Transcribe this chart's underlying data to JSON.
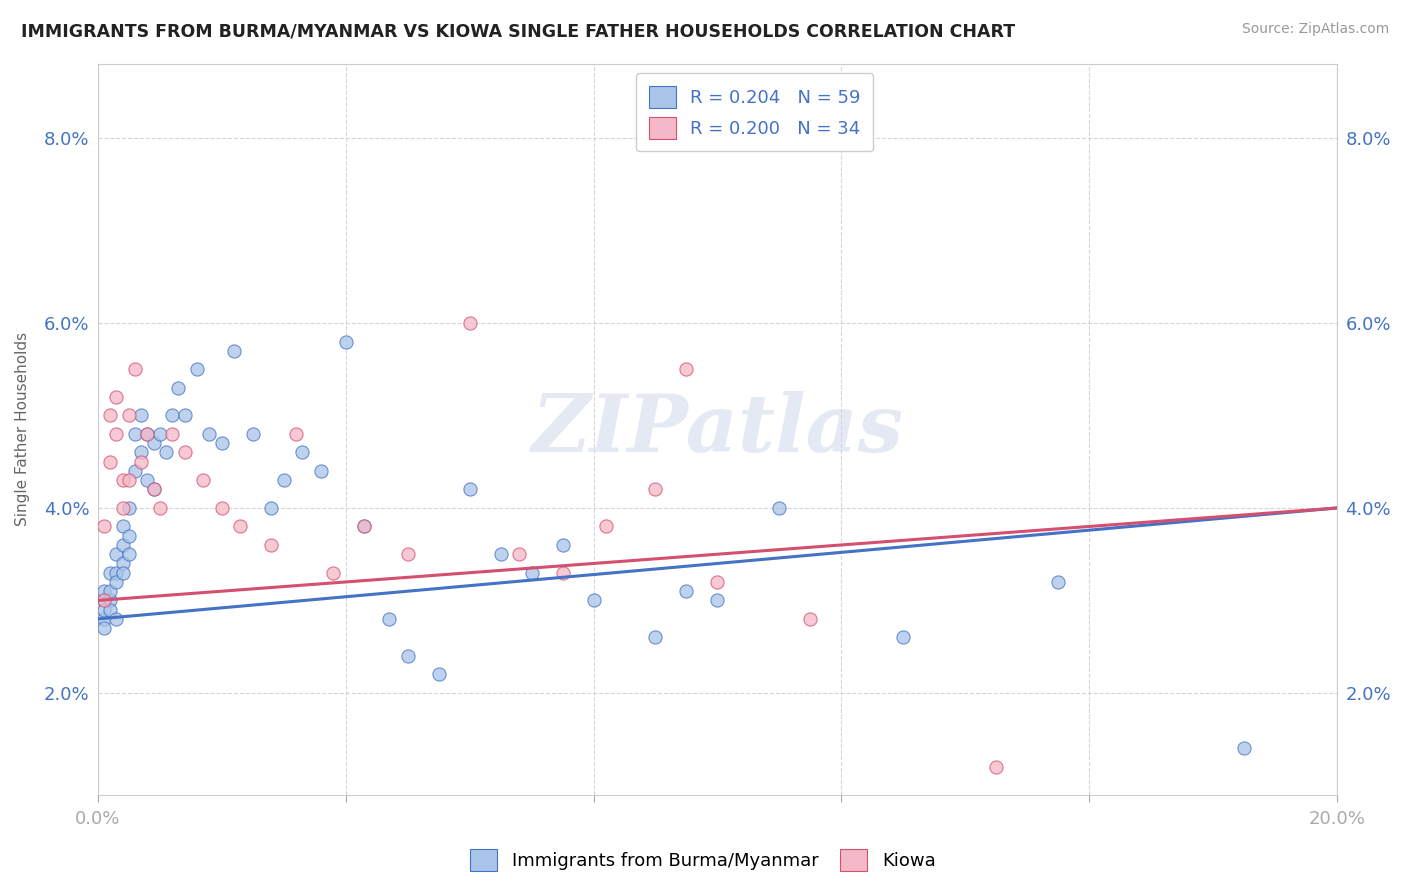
{
  "title": "IMMIGRANTS FROM BURMA/MYANMAR VS KIOWA SINGLE FATHER HOUSEHOLDS CORRELATION CHART",
  "source": "Source: ZipAtlas.com",
  "ylabel": "Single Father Households",
  "xlim": [
    0.0,
    0.2
  ],
  "ylim": [
    0.009,
    0.088
  ],
  "xticks": [
    0.0,
    0.04,
    0.08,
    0.12,
    0.16,
    0.2
  ],
  "yticks": [
    0.02,
    0.04,
    0.06,
    0.08
  ],
  "ytick_labels": [
    "2.0%",
    "4.0%",
    "6.0%",
    "8.0%"
  ],
  "xtick_labels_show": [
    "0.0%",
    "20.0%"
  ],
  "legend_r1": "R = 0.204",
  "legend_n1": "N = 59",
  "legend_r2": "R = 0.200",
  "legend_n2": "N = 34",
  "color_blue": "#a8c4e8",
  "color_pink": "#f4b8c8",
  "color_blue_line": "#4472c4",
  "color_pink_line": "#d45070",
  "watermark_text": "ZIPatlas",
  "bottom_legend1": "Immigrants from Burma/Myanmar",
  "bottom_legend2": "Kiowa",
  "blue_x": [
    0.001,
    0.001,
    0.001,
    0.001,
    0.001,
    0.002,
    0.002,
    0.002,
    0.002,
    0.003,
    0.003,
    0.003,
    0.003,
    0.004,
    0.004,
    0.004,
    0.004,
    0.005,
    0.005,
    0.005,
    0.006,
    0.006,
    0.007,
    0.007,
    0.008,
    0.008,
    0.009,
    0.009,
    0.01,
    0.011,
    0.012,
    0.013,
    0.014,
    0.016,
    0.018,
    0.02,
    0.022,
    0.025,
    0.028,
    0.03,
    0.033,
    0.036,
    0.04,
    0.043,
    0.047,
    0.05,
    0.055,
    0.06,
    0.065,
    0.07,
    0.075,
    0.08,
    0.09,
    0.095,
    0.1,
    0.11,
    0.13,
    0.155,
    0.185
  ],
  "blue_y": [
    0.03,
    0.028,
    0.031,
    0.029,
    0.027,
    0.03,
    0.033,
    0.031,
    0.029,
    0.035,
    0.033,
    0.032,
    0.028,
    0.036,
    0.034,
    0.038,
    0.033,
    0.04,
    0.037,
    0.035,
    0.048,
    0.044,
    0.05,
    0.046,
    0.048,
    0.043,
    0.047,
    0.042,
    0.048,
    0.046,
    0.05,
    0.053,
    0.05,
    0.055,
    0.048,
    0.047,
    0.057,
    0.048,
    0.04,
    0.043,
    0.046,
    0.044,
    0.058,
    0.038,
    0.028,
    0.024,
    0.022,
    0.042,
    0.035,
    0.033,
    0.036,
    0.03,
    0.026,
    0.031,
    0.03,
    0.04,
    0.026,
    0.032,
    0.014
  ],
  "pink_x": [
    0.001,
    0.001,
    0.002,
    0.002,
    0.003,
    0.003,
    0.004,
    0.004,
    0.005,
    0.005,
    0.006,
    0.007,
    0.008,
    0.009,
    0.01,
    0.012,
    0.014,
    0.017,
    0.02,
    0.023,
    0.028,
    0.032,
    0.038,
    0.043,
    0.05,
    0.06,
    0.068,
    0.075,
    0.082,
    0.09,
    0.095,
    0.1,
    0.115,
    0.145
  ],
  "pink_y": [
    0.038,
    0.03,
    0.05,
    0.045,
    0.052,
    0.048,
    0.043,
    0.04,
    0.05,
    0.043,
    0.055,
    0.045,
    0.048,
    0.042,
    0.04,
    0.048,
    0.046,
    0.043,
    0.04,
    0.038,
    0.036,
    0.048,
    0.033,
    0.038,
    0.035,
    0.06,
    0.035,
    0.033,
    0.038,
    0.042,
    0.055,
    0.032,
    0.028,
    0.012
  ],
  "trendline_blue_start": 0.028,
  "trendline_blue_end": 0.04,
  "trendline_pink_start": 0.03,
  "trendline_pink_end": 0.04
}
